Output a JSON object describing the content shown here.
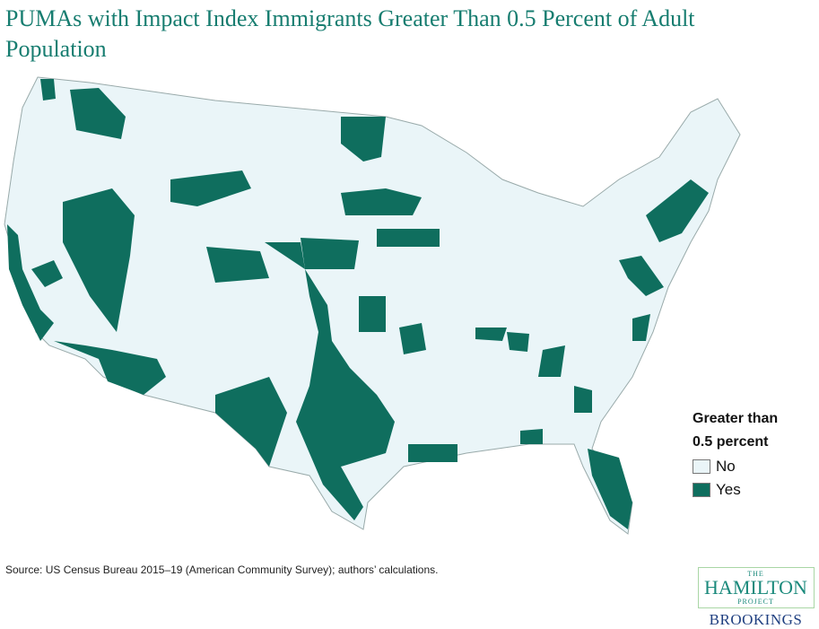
{
  "title": "PUMAs with Impact Index Immigrants Greater Than 0.5 Percent of Adult Population",
  "legend": {
    "title_line1": "Greater than",
    "title_line2": "0.5 percent",
    "items": [
      {
        "label": "No",
        "color": "#eaf5f8"
      },
      {
        "label": "Yes",
        "color": "#0f6e5e"
      }
    ]
  },
  "source": "Source: US Census Bureau 2015–19 (American Community Survey); authors’ calculations.",
  "logo": {
    "the": "THE",
    "hamilton": "HAMILTON",
    "project": "PROJECT",
    "brookings": "BROOKINGS"
  },
  "colors": {
    "title": "#177d70",
    "yes": "#0f6e5e",
    "no": "#eaf5f8",
    "border": "#9aa"
  }
}
